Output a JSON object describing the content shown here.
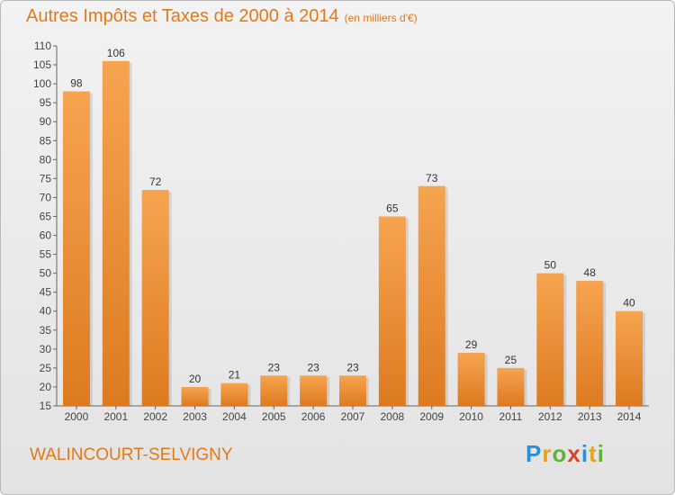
{
  "title": "Autres Impôts et Taxes de 2000 à 2014",
  "subtitle": "(en milliers d'€)",
  "commune": "WALINCOURT-SELVIGNY",
  "logo": {
    "letters": [
      "P",
      "r",
      "o",
      "x",
      "i",
      "t",
      "i"
    ],
    "colors": [
      "#2b8fd6",
      "#e8a11c",
      "#5cb338",
      "#d6452b",
      "#2b8fd6",
      "#e8a11c",
      "#5cb338"
    ]
  },
  "colors": {
    "bar_top": "#f6a450",
    "bar_bottom": "#dd7a20",
    "title": "#e07a1a"
  },
  "chart_data": {
    "type": "bar",
    "title": "Autres Impôts et Taxes de 2000 à 2014",
    "subtitle": "(en milliers d'€)",
    "categories": [
      "2000",
      "2001",
      "2002",
      "2003",
      "2004",
      "2005",
      "2006",
      "2007",
      "2008",
      "2009",
      "2010",
      "2011",
      "2012",
      "2013",
      "2014"
    ],
    "values": [
      98,
      106,
      72,
      20,
      21,
      23,
      23,
      23,
      65,
      73,
      29,
      25,
      50,
      48,
      40
    ],
    "ylim": [
      15,
      110
    ],
    "yticks": [
      15,
      20,
      25,
      30,
      35,
      40,
      45,
      50,
      55,
      60,
      65,
      70,
      75,
      80,
      85,
      90,
      95,
      100,
      105,
      110
    ],
    "grid": false
  }
}
